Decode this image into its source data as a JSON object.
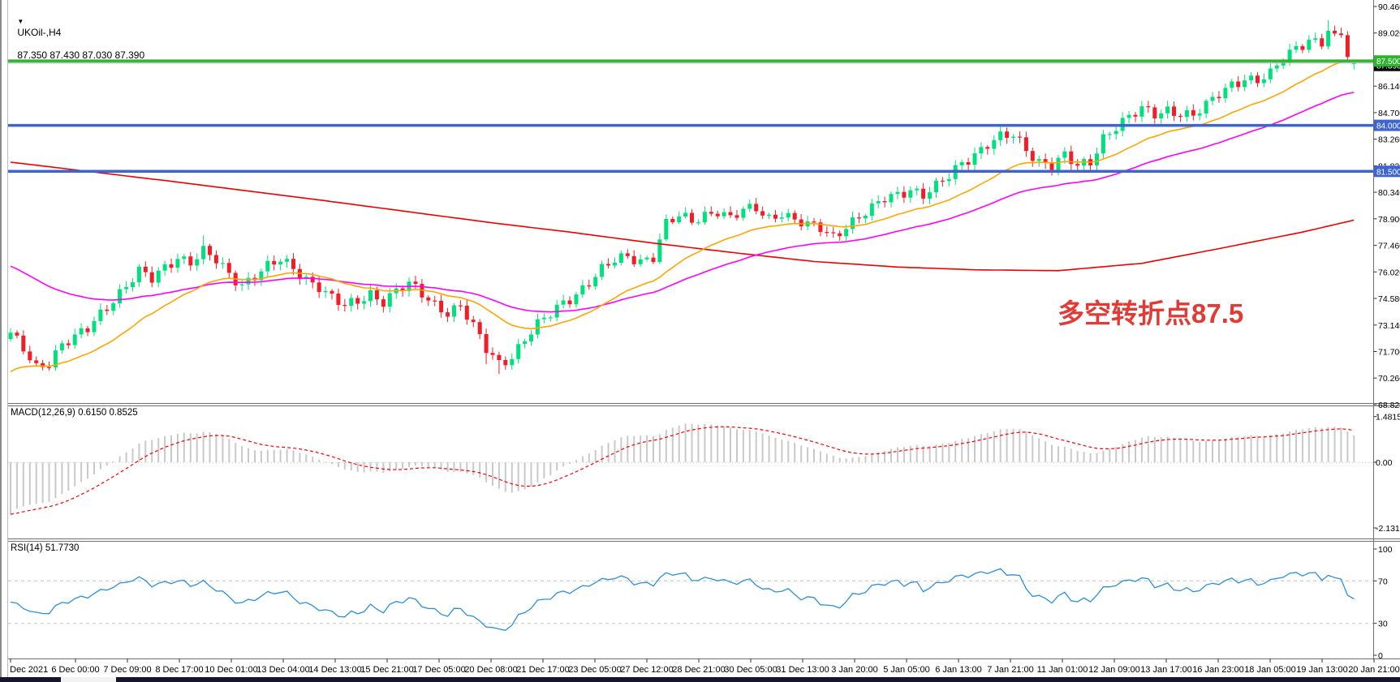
{
  "header": {
    "symbol_period": "UKOil-,H4",
    "ohlc_text": "87.350 87.430 87.030 87.390"
  },
  "annotation": {
    "text": "多空转折点87.5",
    "color": "#e23b36"
  },
  "macd": {
    "label": "MACD(12,26,9) 0.6150 0.8525",
    "axis": [
      {
        "text": "1.4815",
        "value": 1.4815
      },
      {
        "text": "0.00",
        "value": 0
      },
      {
        "text": "-2.1313",
        "value": -2.1313
      }
    ]
  },
  "rsi": {
    "label": "RSI(14) 51.7730",
    "axis": [
      {
        "text": "100",
        "value": 100
      },
      {
        "text": "70",
        "value": 70
      },
      {
        "text": "30",
        "value": 30
      },
      {
        "text": "0",
        "value": 0
      }
    ],
    "dashed_levels": [
      70,
      30
    ]
  },
  "price_axis": {
    "labels": [
      "90.460",
      "89.020",
      "87.580",
      "86.140",
      "84.700",
      "83.260",
      "81.820",
      "80.340",
      "78.900",
      "77.460",
      "76.020",
      "74.580",
      "73.140",
      "71.700",
      "70.260",
      "68.820"
    ],
    "top_value": 90.46,
    "bottom_value": 68.82
  },
  "time_axis": {
    "labels": [
      "2 Dec 2021",
      "6 Dec 00:00",
      "7 Dec 09:00",
      "8 Dec 17:00",
      "10 Dec 01:00",
      "13 Dec 04:00",
      "14 Dec 13:00",
      "15 Dec 21:00",
      "17 Dec 05:00",
      "20 Dec 08:00",
      "21 Dec 17:00",
      "23 Dec 05:00",
      "27 Dec 12:00",
      "28 Dec 21:00",
      "30 Dec 05:00",
      "31 Dec 13:00",
      "3 Jan 20:00",
      "5 Jan 05:00",
      "6 Jan 13:00",
      "7 Jan 21:00",
      "11 Jan 01:00",
      "12 Jan 09:00",
      "13 Jan 17:00",
      "16 Jan 23:00",
      "18 Jan 05:00",
      "19 Jan 13:00",
      "20 Jan 21:00"
    ]
  },
  "levels": [
    {
      "value": 87.5,
      "label": "87.500",
      "color": "#2db52d",
      "width": 3.5,
      "name": "hline-resistance-87500"
    },
    {
      "value": 84.0,
      "label": "84.000",
      "color": "#3e64d2",
      "width": 3.5,
      "name": "hline-84000"
    },
    {
      "value": 81.5,
      "label": "81.500",
      "color": "#3e64d2",
      "width": 3.5,
      "name": "hline-support-81500"
    }
  ],
  "bid": {
    "value": 87.39,
    "label": "87.390",
    "line_color": "#ababab",
    "tag_color": "#000000"
  },
  "chart_data": {
    "type": "candlestick+indicators",
    "symbol": "UKOil-",
    "timeframe": "H4",
    "candles_count": 210,
    "price_range_shown": [
      68.82,
      90.46
    ],
    "close_path_anchors": [
      [
        0,
        72.6
      ],
      [
        2,
        71.8
      ],
      [
        4,
        70.9
      ],
      [
        6,
        71.2
      ],
      [
        8,
        72.1
      ],
      [
        10,
        72.4
      ],
      [
        12,
        72.9
      ],
      [
        14,
        73.8
      ],
      [
        16,
        74.6
      ],
      [
        18,
        75.3
      ],
      [
        20,
        76.0
      ],
      [
        22,
        75.6
      ],
      [
        24,
        76.3
      ],
      [
        26,
        76.9
      ],
      [
        28,
        76.6
      ],
      [
        30,
        77.1
      ],
      [
        32,
        76.6
      ],
      [
        34,
        75.9
      ],
      [
        36,
        75.4
      ],
      [
        38,
        75.9
      ],
      [
        40,
        76.3
      ],
      [
        42,
        76.6
      ],
      [
        44,
        76.2
      ],
      [
        46,
        75.7
      ],
      [
        48,
        75.3
      ],
      [
        50,
        74.6
      ],
      [
        52,
        74.1
      ],
      [
        54,
        74.4
      ],
      [
        56,
        74.9
      ],
      [
        58,
        74.5
      ],
      [
        60,
        75.0
      ],
      [
        62,
        75.3
      ],
      [
        64,
        74.8
      ],
      [
        66,
        74.3
      ],
      [
        68,
        73.9
      ],
      [
        70,
        74.2
      ],
      [
        72,
        73.0
      ],
      [
        74,
        71.8
      ],
      [
        76,
        71.1
      ],
      [
        78,
        71.5
      ],
      [
        80,
        72.4
      ],
      [
        82,
        73.1
      ],
      [
        84,
        73.7
      ],
      [
        86,
        74.4
      ],
      [
        88,
        74.9
      ],
      [
        90,
        75.5
      ],
      [
        92,
        76.1
      ],
      [
        94,
        76.6
      ],
      [
        96,
        76.9
      ],
      [
        98,
        76.7
      ],
      [
        100,
        76.9
      ],
      [
        102,
        78.6
      ],
      [
        104,
        79.0
      ],
      [
        106,
        78.8
      ],
      [
        108,
        79.2
      ],
      [
        110,
        79.4
      ],
      [
        112,
        78.9
      ],
      [
        114,
        79.3
      ],
      [
        116,
        79.5
      ],
      [
        118,
        79.0
      ],
      [
        120,
        79.3
      ],
      [
        122,
        78.8
      ],
      [
        124,
        78.5
      ],
      [
        126,
        78.4
      ],
      [
        128,
        78.0
      ],
      [
        130,
        78.6
      ],
      [
        132,
        79.0
      ],
      [
        134,
        79.4
      ],
      [
        136,
        80.0
      ],
      [
        138,
        80.3
      ],
      [
        140,
        80.6
      ],
      [
        142,
        80.2
      ],
      [
        144,
        80.6
      ],
      [
        146,
        81.2
      ],
      [
        148,
        82.0
      ],
      [
        150,
        82.5
      ],
      [
        152,
        83.0
      ],
      [
        154,
        83.3
      ],
      [
        156,
        83.4
      ],
      [
        158,
        82.7
      ],
      [
        160,
        82.1
      ],
      [
        162,
        81.9
      ],
      [
        164,
        82.3
      ],
      [
        166,
        81.7
      ],
      [
        168,
        82.0
      ],
      [
        170,
        83.4
      ],
      [
        172,
        84.0
      ],
      [
        174,
        84.4
      ],
      [
        176,
        84.8
      ],
      [
        178,
        84.6
      ],
      [
        180,
        84.9
      ],
      [
        182,
        84.7
      ],
      [
        184,
        84.5
      ],
      [
        186,
        85.0
      ],
      [
        188,
        85.7
      ],
      [
        190,
        86.3
      ],
      [
        192,
        86.6
      ],
      [
        194,
        86.4
      ],
      [
        196,
        86.7
      ],
      [
        198,
        87.6
      ],
      [
        200,
        88.3
      ],
      [
        202,
        88.7
      ],
      [
        204,
        88.5
      ],
      [
        205,
        89.1
      ],
      [
        206,
        88.6
      ],
      [
        207,
        88.9
      ],
      [
        208,
        87.8
      ],
      [
        209,
        87.39
      ]
    ],
    "last_candle": {
      "open": 87.35,
      "high": 87.43,
      "low": 87.03,
      "close": 87.39
    },
    "wick_specials": [
      [
        30,
        0.3,
        0
      ],
      [
        74,
        0,
        0.35
      ],
      [
        76,
        0,
        0.5
      ],
      [
        205,
        0.45,
        0
      ]
    ],
    "ma_fast": {
      "type": "ema",
      "period": 21,
      "seed": 70.4,
      "color": "#ffa500"
    },
    "ma_mid": {
      "type": "ema",
      "period": 48,
      "seed": 76.5,
      "color": "#ff00ff"
    },
    "ma_slow_anchors": [
      [
        0,
        82.0
      ],
      [
        24,
        81.0
      ],
      [
        49,
        79.9
      ],
      [
        75,
        78.7
      ],
      [
        87,
        78.2
      ],
      [
        100,
        77.6
      ],
      [
        112,
        77.1
      ],
      [
        125,
        76.6
      ],
      [
        138,
        76.3
      ],
      [
        150,
        76.15
      ],
      [
        163,
        76.1
      ],
      [
        176,
        76.5
      ],
      [
        188,
        77.3
      ],
      [
        201,
        78.2
      ],
      [
        209,
        78.85
      ]
    ],
    "ma_slow_color": "#f00000",
    "macd_params": {
      "fast": 12,
      "slow": 26,
      "signal": 9,
      "seed_fast_offset": -0.9,
      "seed_slow_offset": 1.0
    },
    "rsi_period": 14,
    "colors": {
      "up": "#00e07c",
      "down": "#f01e28",
      "macd_hist": "#c9c9c9",
      "macd_signal": "#ff0000",
      "rsi_line": "#2a8fdd"
    }
  }
}
